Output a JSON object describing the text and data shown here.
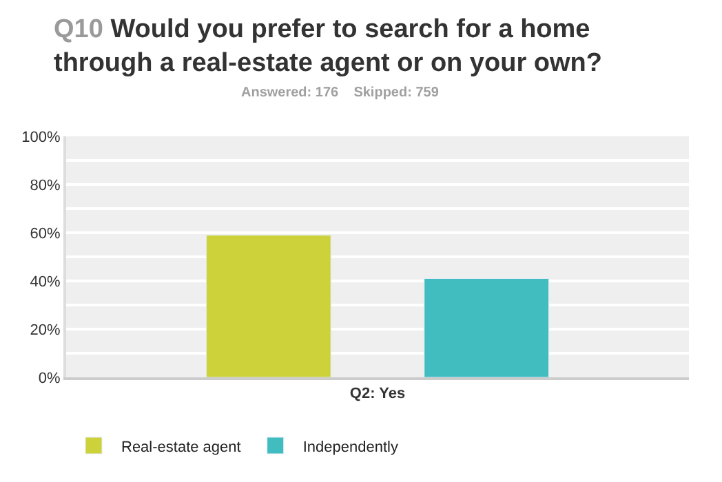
{
  "chart_data": {
    "type": "bar",
    "title": "Q10 Would you prefer to search for a home through a real-estate agent or on your own?",
    "subtitle": "Answered: 176    Skipped: 759",
    "categories": [
      "Q2: Yes"
    ],
    "series": [
      {
        "name": "Real-estate agent",
        "color": "#cdd23a",
        "values": [
          59
        ]
      },
      {
        "name": "Independently",
        "color": "#41bdc0",
        "values": [
          41
        ]
      }
    ],
    "ylim": [
      0,
      100
    ],
    "yticks": [
      {
        "value": 0,
        "label": "0%"
      },
      {
        "value": 10,
        "label": null
      },
      {
        "value": 20,
        "label": "20%"
      },
      {
        "value": 30,
        "label": null
      },
      {
        "value": 40,
        "label": "40%"
      },
      {
        "value": 50,
        "label": null
      },
      {
        "value": 60,
        "label": "60%"
      },
      {
        "value": 70,
        "label": null
      },
      {
        "value": 80,
        "label": "80%"
      },
      {
        "value": 90,
        "label": null
      },
      {
        "value": 100,
        "label": "100%"
      }
    ],
    "grid": "y",
    "legend": "bottom left"
  }
}
